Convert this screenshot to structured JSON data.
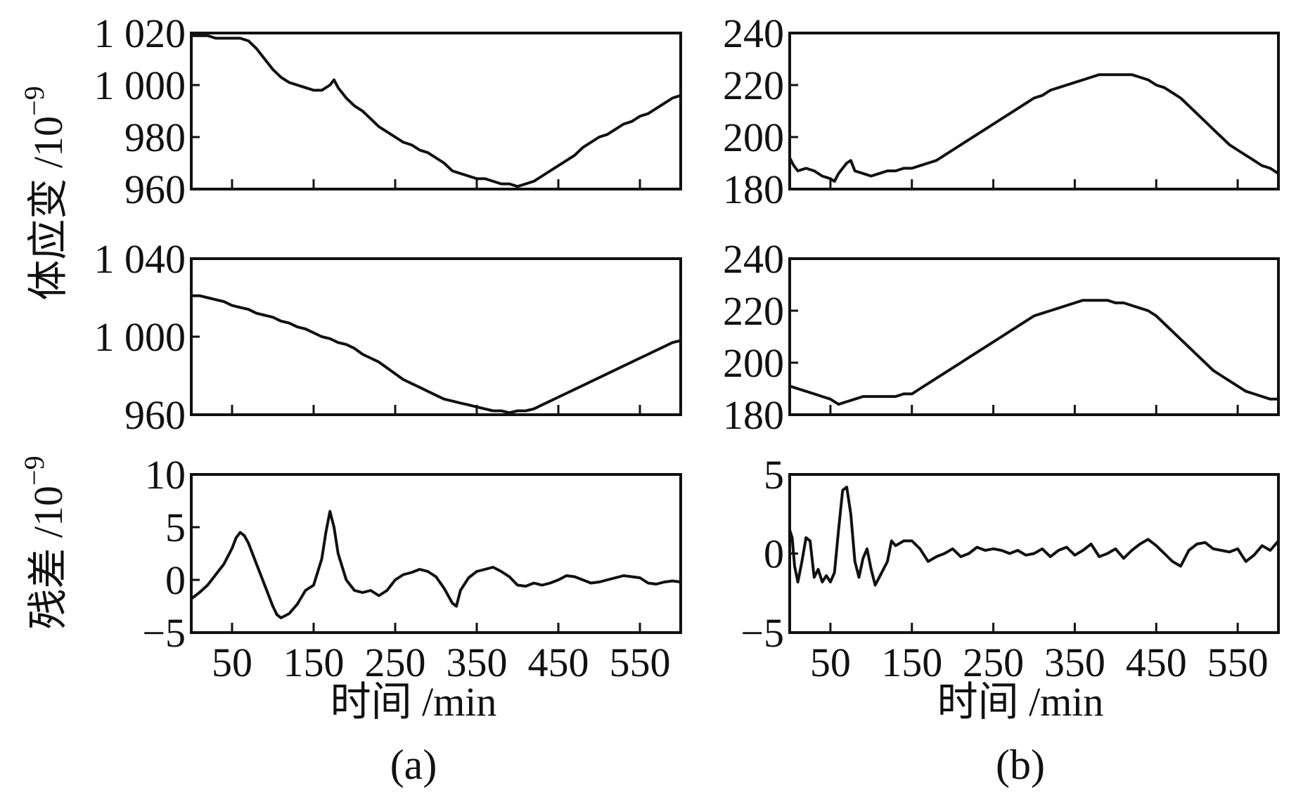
{
  "figure": {
    "ylabel_top": "体应变 /10",
    "ylabel_top_exp": "−9",
    "ylabel_bottom": "残差 /10",
    "ylabel_bottom_exp": "−9",
    "xlabel_a": "时间 /min",
    "xlabel_b": "时间 /min",
    "label_a": "(a)",
    "label_b": "(b)"
  },
  "chart_data": [
    {
      "id": "a1",
      "type": "line",
      "xlim": [
        0,
        600
      ],
      "ylim": [
        960,
        1020
      ],
      "yticks": [
        960,
        980,
        1000,
        1020
      ],
      "ytick_labels": [
        "960",
        "980",
        "1 000",
        "1 020"
      ],
      "xticks": [
        50,
        150,
        250,
        350,
        450,
        550
      ],
      "xtick_labels": [],
      "series": [
        {
          "x": [
            0,
            10,
            20,
            30,
            40,
            50,
            60,
            70,
            80,
            90,
            100,
            110,
            120,
            130,
            140,
            150,
            160,
            170,
            175,
            180,
            190,
            200,
            210,
            220,
            230,
            240,
            250,
            260,
            270,
            280,
            290,
            300,
            310,
            320,
            330,
            340,
            350,
            360,
            370,
            380,
            390,
            400,
            410,
            420,
            430,
            440,
            450,
            460,
            470,
            480,
            490,
            500,
            510,
            520,
            530,
            540,
            550,
            560,
            570,
            580,
            590,
            600
          ],
          "y": [
            1019,
            1019,
            1019,
            1018,
            1018,
            1018,
            1018,
            1017,
            1014,
            1010,
            1006,
            1003,
            1001,
            1000,
            999,
            998,
            998,
            1000,
            1002,
            999,
            995,
            992,
            990,
            987,
            984,
            982,
            980,
            978,
            977,
            975,
            974,
            972,
            970,
            967,
            966,
            965,
            964,
            964,
            963,
            962,
            962,
            961,
            962,
            963,
            965,
            967,
            969,
            971,
            973,
            976,
            978,
            980,
            981,
            983,
            985,
            986,
            988,
            989,
            991,
            993,
            995,
            996
          ]
        }
      ]
    },
    {
      "id": "a2",
      "type": "line",
      "xlim": [
        0,
        600
      ],
      "ylim": [
        960,
        1040
      ],
      "yticks": [
        960,
        1000,
        1040
      ],
      "ytick_labels": [
        "960",
        "1 000",
        "1 040"
      ],
      "xticks": [
        50,
        150,
        250,
        350,
        450,
        550
      ],
      "xtick_labels": [],
      "series": [
        {
          "x": [
            0,
            10,
            20,
            30,
            40,
            50,
            60,
            70,
            80,
            90,
            100,
            110,
            120,
            130,
            140,
            150,
            160,
            170,
            180,
            190,
            200,
            210,
            220,
            230,
            240,
            250,
            260,
            270,
            280,
            290,
            300,
            310,
            320,
            330,
            340,
            350,
            360,
            370,
            380,
            390,
            400,
            410,
            420,
            430,
            440,
            450,
            460,
            470,
            480,
            490,
            500,
            510,
            520,
            530,
            540,
            550,
            560,
            570,
            580,
            590,
            600
          ],
          "y": [
            1021,
            1021,
            1020,
            1019,
            1018,
            1016,
            1015,
            1014,
            1012,
            1011,
            1010,
            1008,
            1007,
            1005,
            1004,
            1002,
            1000,
            999,
            997,
            996,
            994,
            991,
            989,
            987,
            984,
            981,
            978,
            976,
            974,
            972,
            970,
            968,
            967,
            966,
            965,
            964,
            963,
            962,
            962,
            961,
            962,
            962,
            963,
            965,
            967,
            969,
            971,
            973,
            975,
            977,
            979,
            981,
            983,
            985,
            987,
            989,
            991,
            993,
            995,
            997,
            998
          ]
        }
      ]
    },
    {
      "id": "a3",
      "type": "line",
      "xlim": [
        0,
        600
      ],
      "ylim": [
        -5,
        10
      ],
      "yticks": [
        -5,
        0,
        5,
        10
      ],
      "ytick_labels": [
        "−5",
        "0",
        "5",
        "10"
      ],
      "xticks": [
        50,
        150,
        250,
        350,
        450,
        550
      ],
      "xtick_labels": [
        "50",
        "150",
        "250",
        "350",
        "450",
        "550"
      ],
      "series": [
        {
          "x": [
            0,
            10,
            20,
            30,
            40,
            50,
            55,
            60,
            65,
            70,
            80,
            90,
            100,
            105,
            110,
            120,
            130,
            140,
            150,
            160,
            165,
            170,
            175,
            180,
            190,
            200,
            210,
            220,
            230,
            240,
            250,
            260,
            270,
            280,
            290,
            300,
            310,
            320,
            325,
            330,
            340,
            350,
            360,
            370,
            380,
            390,
            400,
            410,
            420,
            430,
            440,
            450,
            460,
            470,
            480,
            490,
            500,
            510,
            520,
            530,
            540,
            550,
            560,
            570,
            580,
            590,
            600
          ],
          "y": [
            -1.8,
            -1.2,
            -0.5,
            0.5,
            1.5,
            3.0,
            4.0,
            4.5,
            4.2,
            3.5,
            1.5,
            -0.5,
            -2.5,
            -3.3,
            -3.6,
            -3.2,
            -2.3,
            -1.0,
            -0.5,
            2.0,
            4.5,
            6.5,
            5.0,
            2.5,
            0.0,
            -1.0,
            -1.2,
            -1.0,
            -1.5,
            -1.0,
            0.0,
            0.5,
            0.7,
            1.0,
            0.8,
            0.3,
            -0.8,
            -2.2,
            -2.5,
            -1.0,
            0.2,
            0.8,
            1.0,
            1.2,
            0.8,
            0.3,
            -0.5,
            -0.6,
            -0.3,
            -0.5,
            -0.3,
            0.0,
            0.4,
            0.3,
            0.0,
            -0.3,
            -0.2,
            0.0,
            0.2,
            0.4,
            0.3,
            0.2,
            -0.3,
            -0.4,
            -0.2,
            -0.1,
            -0.2
          ]
        }
      ]
    },
    {
      "id": "b1",
      "type": "line",
      "xlim": [
        0,
        600
      ],
      "ylim": [
        180,
        240
      ],
      "yticks": [
        180,
        200,
        220,
        240
      ],
      "ytick_labels": [
        "180",
        "200",
        "220",
        "240"
      ],
      "xticks": [
        50,
        150,
        250,
        350,
        450,
        550
      ],
      "xtick_labels": [],
      "series": [
        {
          "x": [
            0,
            5,
            10,
            20,
            30,
            40,
            50,
            55,
            60,
            70,
            75,
            80,
            90,
            100,
            110,
            120,
            130,
            140,
            150,
            160,
            170,
            180,
            190,
            200,
            210,
            220,
            230,
            240,
            250,
            260,
            270,
            280,
            290,
            300,
            310,
            320,
            330,
            340,
            350,
            360,
            370,
            380,
            390,
            400,
            410,
            420,
            430,
            440,
            450,
            460,
            470,
            480,
            490,
            500,
            510,
            520,
            530,
            540,
            550,
            560,
            570,
            580,
            590,
            600
          ],
          "y": [
            192,
            189,
            187,
            188,
            187,
            185,
            184,
            183,
            186,
            190,
            191,
            187,
            186,
            185,
            186,
            187,
            187,
            188,
            188,
            189,
            190,
            191,
            193,
            195,
            197,
            199,
            201,
            203,
            205,
            207,
            209,
            211,
            213,
            215,
            216,
            218,
            219,
            220,
            221,
            222,
            223,
            224,
            224,
            224,
            224,
            224,
            223,
            222,
            220,
            219,
            217,
            215,
            212,
            209,
            206,
            203,
            200,
            197,
            195,
            193,
            191,
            189,
            188,
            186
          ]
        }
      ]
    },
    {
      "id": "b2",
      "type": "line",
      "xlim": [
        0,
        600
      ],
      "ylim": [
        180,
        240
      ],
      "yticks": [
        180,
        200,
        220,
        240
      ],
      "ytick_labels": [
        "180",
        "200",
        "220",
        "240"
      ],
      "xticks": [
        50,
        150,
        250,
        350,
        450,
        550
      ],
      "xtick_labels": [],
      "series": [
        {
          "x": [
            0,
            10,
            20,
            30,
            40,
            50,
            55,
            60,
            70,
            80,
            90,
            100,
            110,
            120,
            130,
            140,
            150,
            160,
            170,
            180,
            190,
            200,
            210,
            220,
            230,
            240,
            250,
            260,
            270,
            280,
            290,
            300,
            310,
            320,
            330,
            340,
            350,
            360,
            370,
            380,
            390,
            400,
            410,
            420,
            430,
            440,
            450,
            460,
            470,
            480,
            490,
            500,
            510,
            520,
            530,
            540,
            550,
            560,
            570,
            580,
            590,
            600
          ],
          "y": [
            191,
            190,
            189,
            188,
            187,
            186,
            185,
            184,
            185,
            186,
            187,
            187,
            187,
            187,
            187,
            188,
            188,
            190,
            192,
            194,
            196,
            198,
            200,
            202,
            204,
            206,
            208,
            210,
            212,
            214,
            216,
            218,
            219,
            220,
            221,
            222,
            223,
            224,
            224,
            224,
            224,
            223,
            223,
            222,
            221,
            220,
            218,
            215,
            212,
            209,
            206,
            203,
            200,
            197,
            195,
            193,
            191,
            189,
            188,
            187,
            186,
            186
          ]
        }
      ]
    },
    {
      "id": "b3",
      "type": "line",
      "xlim": [
        0,
        600
      ],
      "ylim": [
        -5,
        5
      ],
      "yticks": [
        -5,
        0,
        5
      ],
      "ytick_labels": [
        "−5",
        "0",
        "5"
      ],
      "xticks": [
        50,
        150,
        250,
        350,
        450,
        550
      ],
      "xtick_labels": [
        "50",
        "150",
        "250",
        "350",
        "450",
        "550"
      ],
      "series": [
        {
          "x": [
            0,
            3,
            6,
            10,
            15,
            20,
            25,
            30,
            35,
            40,
            45,
            50,
            55,
            60,
            65,
            70,
            75,
            80,
            85,
            90,
            95,
            100,
            105,
            110,
            115,
            120,
            125,
            130,
            140,
            150,
            160,
            170,
            180,
            190,
            200,
            210,
            220,
            230,
            240,
            250,
            260,
            270,
            280,
            290,
            300,
            310,
            320,
            330,
            340,
            350,
            360,
            370,
            380,
            390,
            400,
            410,
            420,
            430,
            440,
            450,
            460,
            470,
            480,
            490,
            500,
            510,
            520,
            530,
            540,
            550,
            560,
            570,
            580,
            590,
            600
          ],
          "y": [
            1.5,
            1.0,
            -0.8,
            -1.8,
            -0.5,
            1.0,
            0.8,
            -1.5,
            -1.0,
            -1.8,
            -1.4,
            -1.8,
            -1.2,
            1.5,
            4.0,
            4.2,
            2.5,
            -0.5,
            -1.5,
            -0.3,
            0.3,
            -1.0,
            -2.0,
            -1.5,
            -1.0,
            -0.5,
            0.8,
            0.5,
            0.8,
            0.8,
            0.3,
            -0.5,
            -0.2,
            0.0,
            0.3,
            -0.2,
            0.0,
            0.4,
            0.2,
            0.3,
            0.2,
            0.0,
            0.2,
            -0.1,
            0.0,
            0.3,
            -0.2,
            0.2,
            0.4,
            -0.1,
            0.2,
            0.6,
            -0.2,
            0.0,
            0.3,
            -0.3,
            0.2,
            0.6,
            0.9,
            0.5,
            0.0,
            -0.5,
            -0.8,
            0.2,
            0.6,
            0.7,
            0.3,
            0.2,
            0.1,
            0.3,
            -0.5,
            -0.1,
            0.5,
            0.2,
            0.8
          ]
        }
      ]
    }
  ]
}
